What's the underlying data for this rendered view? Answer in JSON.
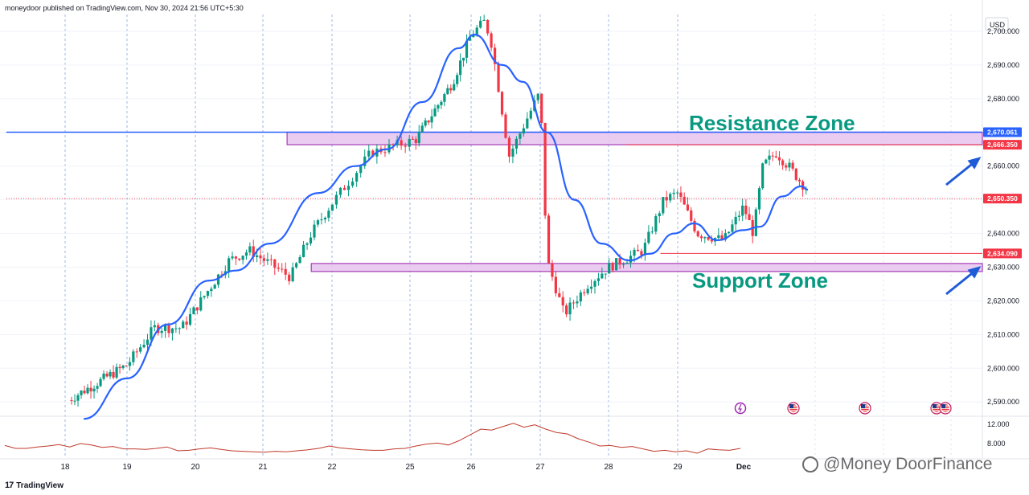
{
  "header": {
    "publisher": "moneydoor published on TradingView.com, Nov 30, 2024 21:56 UTC+5:30"
  },
  "footer": {
    "logo_text": "TradingView",
    "logo_glyph": "17"
  },
  "watermark": {
    "text": "@Money  DoorFinance"
  },
  "colors": {
    "up": "#089981",
    "down": "#f23645",
    "ema": "#2962ff",
    "zone_fill": "#e8c7f0",
    "zone_stroke": "#9c27b0",
    "annotation": "#089981",
    "arrow": "#1e5bd6",
    "volume_line": "#c0392b"
  },
  "chart_data": [
    {
      "type": "candlestick",
      "title": "",
      "currency": "USD",
      "x_ticks": [
        "18",
        "19",
        "20",
        "21",
        "22",
        "25",
        "26",
        "27",
        "28",
        "29",
        "Dec"
      ],
      "y_ticks": [
        "2,700.000",
        "2,690.000",
        "2,680.000",
        "2,670.000",
        "2,660.000",
        "2,650.000",
        "2,640.000",
        "2,630.000",
        "2,620.000",
        "2,610.000",
        "2,600.000",
        "2,590.000"
      ],
      "ylim": [
        2586,
        2705
      ],
      "price_path": [
        [
          0,
          2590
        ],
        [
          1.0,
          2601
        ],
        [
          1.4,
          2612
        ],
        [
          1.8,
          2612
        ],
        [
          2.5,
          2632
        ],
        [
          2.8,
          2635
        ],
        [
          3.4,
          2627
        ],
        [
          3.7,
          2640
        ],
        [
          4.1,
          2652
        ],
        [
          4.5,
          2664
        ],
        [
          5.1,
          2668
        ],
        [
          5.7,
          2685
        ],
        [
          6.0,
          2699
        ],
        [
          6.2,
          2703
        ],
        [
          6.3,
          2696
        ],
        [
          6.55,
          2663
        ],
        [
          6.9,
          2678
        ],
        [
          7.0,
          2682
        ],
        [
          7.1,
          2632
        ],
        [
          7.35,
          2616
        ],
        [
          7.7,
          2625
        ],
        [
          8.0,
          2630
        ],
        [
          8.5,
          2635
        ],
        [
          8.8,
          2650
        ],
        [
          9.0,
          2652
        ],
        [
          9.3,
          2640
        ],
        [
          9.7,
          2638
        ],
        [
          10.0,
          2648
        ],
        [
          10.15,
          2640
        ],
        [
          10.3,
          2660
        ],
        [
          10.5,
          2664
        ],
        [
          10.7,
          2660
        ],
        [
          10.9,
          2655
        ],
        [
          11.0,
          2653
        ]
      ],
      "ema_path": [
        [
          0.3,
          2585
        ],
        [
          1.0,
          2597
        ],
        [
          1.6,
          2613
        ],
        [
          2.2,
          2626
        ],
        [
          2.6,
          2629
        ],
        [
          3.1,
          2637
        ],
        [
          3.8,
          2652
        ],
        [
          4.3,
          2660
        ],
        [
          4.7,
          2665
        ],
        [
          5.2,
          2679
        ],
        [
          5.8,
          2695
        ],
        [
          6.05,
          2699
        ],
        [
          6.45,
          2690
        ],
        [
          6.75,
          2685
        ],
        [
          7.1,
          2670
        ],
        [
          7.5,
          2650
        ],
        [
          7.9,
          2637
        ],
        [
          8.3,
          2632
        ],
        [
          8.6,
          2634
        ],
        [
          8.95,
          2640
        ],
        [
          9.25,
          2643
        ],
        [
          9.6,
          2638
        ],
        [
          10.0,
          2641
        ],
        [
          10.25,
          2642
        ],
        [
          10.6,
          2651
        ],
        [
          10.9,
          2654
        ],
        [
          11.0,
          2653
        ]
      ],
      "horizontal_lines": [
        {
          "label": "2,670.061",
          "value": 2670.061,
          "color": "#2962ff",
          "from_x": -0.95
        },
        {
          "label": "2,666.350",
          "value": 2666.35,
          "color": "#f23645",
          "from_x": 8.25
        },
        {
          "label": "2,650.350",
          "value": 2650.35,
          "color": "#f23645",
          "style": "dotted",
          "from_x": -0.95
        },
        {
          "label": "2,634.090",
          "value": 2634.09,
          "color": "#f23645",
          "from_x": 8.75
        }
      ],
      "zones": [
        {
          "name": "Resistance Zone",
          "from": 2666.35,
          "to": 2670.061,
          "from_x": 3.35
        },
        {
          "name": "Support Zone",
          "from": 2630.0,
          "to": 2631.1,
          "from_x": 3.7
        }
      ],
      "annotations": [
        "Resistance Zone",
        "Support Zone"
      ]
    },
    {
      "type": "line",
      "title": "",
      "y_ticks": [
        "12.000",
        "8.000"
      ],
      "ylim": [
        5,
        13.5
      ],
      "values": [
        7.6,
        7.0,
        7.0,
        7.3,
        7.5,
        7.8,
        7.3,
        8.0,
        7.7,
        7.2,
        7.4,
        6.9,
        6.9,
        6.8,
        7.0,
        7.3,
        6.5,
        6.6,
        6.9,
        7.1,
        6.8,
        6.5,
        6.4,
        6.3,
        6.2,
        6.4,
        6.3,
        6.5,
        6.7,
        7.0,
        7.5,
        7.1,
        6.9,
        6.7,
        6.6,
        6.6,
        6.9,
        7.0,
        7.5,
        7.9,
        8.1,
        7.7,
        8.6,
        9.8,
        11.0,
        10.8,
        11.5,
        12.2,
        11.4,
        11.9,
        11.0,
        10.3,
        10.0,
        9.0,
        8.3,
        7.5,
        7.6,
        7.2,
        7.4,
        6.9,
        6.4,
        6.6,
        6.3,
        6.5,
        6.0,
        6.9,
        6.7,
        6.6,
        7.0
      ]
    }
  ],
  "event_icons": [
    "lightning-icon",
    "us-flag-icon",
    "us-flag-icon",
    "us-flag-icon",
    "us-flag-icon"
  ]
}
